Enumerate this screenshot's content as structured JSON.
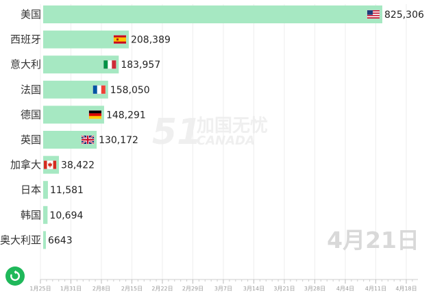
{
  "chart_data": {
    "type": "bar",
    "orientation": "horizontal",
    "title": "",
    "xlabel": "",
    "ylabel": "",
    "bar_color": "#a6e8c2",
    "categories": [
      "美国",
      "西班牙",
      "意大利",
      "法国",
      "德国",
      "英国",
      "加拿大",
      "日本",
      "韩国",
      "奥大利亚"
    ],
    "values": [
      825306,
      208389,
      183957,
      158050,
      148291,
      130172,
      38422,
      11581,
      10694,
      6643
    ],
    "value_labels": [
      "825,306",
      "208,389",
      "183,957",
      "158,050",
      "148,291",
      "130,172",
      "38,422",
      "11,581",
      "10,694",
      "6643"
    ],
    "flags": [
      "usa-flag-icon",
      "spain-flag-icon",
      "italy-flag-icon",
      "france-flag-icon",
      "germany-flag-icon",
      "uk-flag-icon",
      "canada-flag-icon",
      "",
      "",
      ""
    ],
    "x_ticks": [
      "1月25日",
      "1月31日",
      "2月8日",
      "2月15日",
      "2月22日",
      "2月29日",
      "3月7日",
      "3月14日",
      "3月21日",
      "3月28日",
      "4月4日",
      "4月11日",
      "4月18日"
    ],
    "current_date": "4月21日",
    "grid": true
  },
  "watermark": {
    "number": "51",
    "cn": "加国无忧",
    "en": "CANADA"
  },
  "controls": {
    "replay_icon": "refresh-icon",
    "accent": "#1fb85a"
  }
}
